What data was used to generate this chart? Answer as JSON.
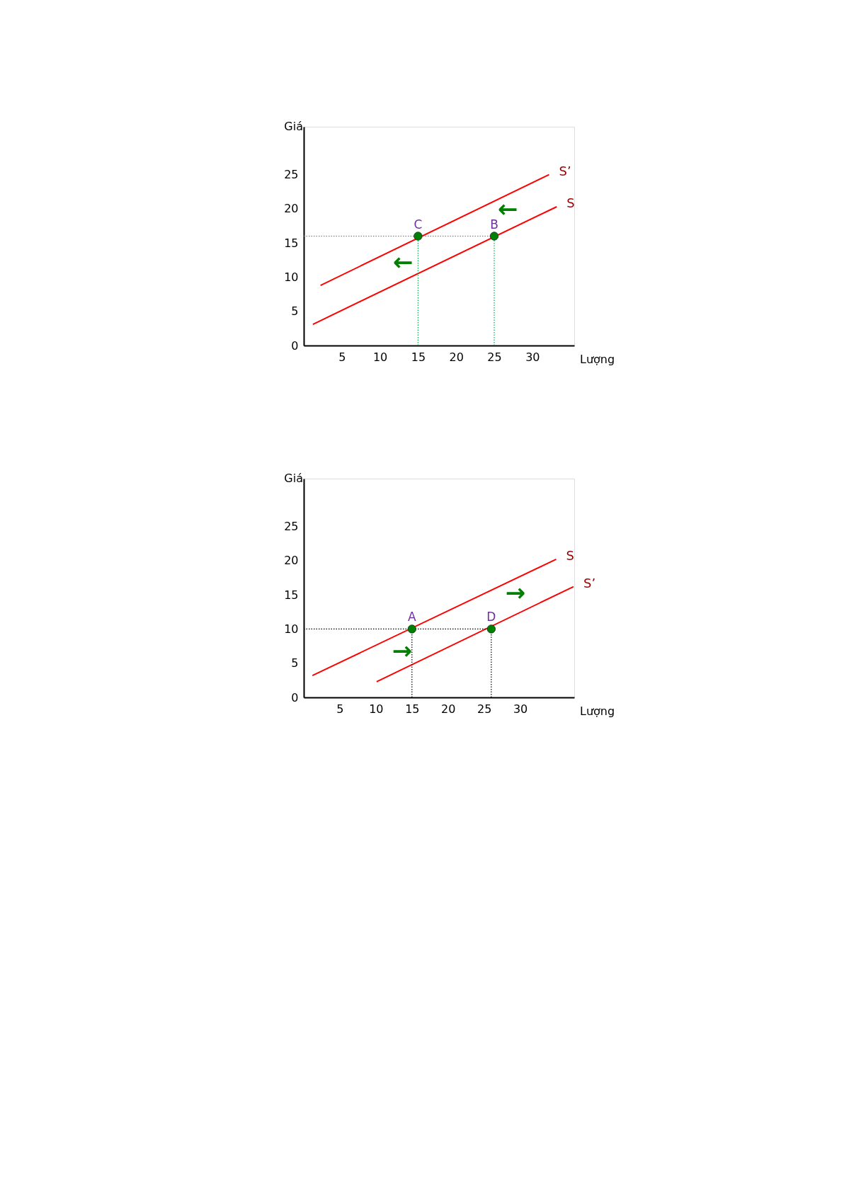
{
  "chart_data": [
    {
      "type": "line",
      "xlabel": "Lượng",
      "ylabel": "Giá",
      "xlim": [
        0,
        35.5
      ],
      "ylim": [
        0,
        32
      ],
      "xticks": [
        5,
        10,
        15,
        20,
        25,
        30
      ],
      "yticks": [
        0,
        5,
        10,
        15,
        20,
        25
      ],
      "series": [
        {
          "name": "S’",
          "color": "#ff0000",
          "x": [
            2.2,
            32.2
          ],
          "values": [
            8.8,
            25
          ]
        },
        {
          "name": "S",
          "color": "#ff0000",
          "x": [
            1.2,
            33.2
          ],
          "values": [
            3.1,
            20.3
          ]
        },
        {
          "color": "#00b050",
          "line_style": "dotted",
          "x": [
            0,
            25
          ],
          "values": [
            16,
            16
          ]
        },
        {
          "color": "#00b050",
          "line_style": "dotted",
          "x": [
            15,
            15
          ],
          "values": [
            0,
            16
          ]
        },
        {
          "color": "#00b050",
          "line_style": "dotted",
          "x": [
            25,
            25
          ],
          "values": [
            0,
            16
          ]
        },
        {
          "type": "scatter",
          "color": "#008000",
          "marker": "circle",
          "x": [
            15,
            25
          ],
          "values": [
            16,
            16
          ]
        }
      ],
      "annotations": [
        {
          "text": "C",
          "x": 15,
          "y": 16
        },
        {
          "text": "B",
          "x": 25,
          "y": 16
        },
        "←",
        "←"
      ]
    },
    {
      "type": "line",
      "xlabel": "Lượng",
      "ylabel": "Giá",
      "xlim": [
        0,
        37.5
      ],
      "ylim": [
        0,
        32
      ],
      "xticks": [
        5,
        10,
        15,
        20,
        25,
        30
      ],
      "yticks": [
        0,
        5,
        10,
        15,
        20,
        25
      ],
      "series": [
        {
          "name": "S",
          "color": "#ff0000",
          "x": [
            1.2,
            35.0
          ],
          "values": [
            3.2,
            20.2
          ]
        },
        {
          "name": "S’",
          "color": "#ff0000",
          "x": [
            10.1,
            37.4
          ],
          "values": [
            2.3,
            16.2
          ]
        },
        {
          "color": "#000000",
          "line_style": "dotted",
          "x": [
            0,
            26
          ],
          "values": [
            10,
            10
          ]
        },
        {
          "color": "#000000",
          "line_style": "dotted",
          "x": [
            15,
            15
          ],
          "values": [
            0,
            10
          ]
        },
        {
          "color": "#000000",
          "line_style": "dotted",
          "x": [
            26,
            26
          ],
          "values": [
            0,
            10
          ]
        },
        {
          "type": "scatter",
          "color": "#008000",
          "marker": "circle",
          "x": [
            15,
            26
          ],
          "values": [
            10,
            10
          ]
        }
      ],
      "annotations": [
        {
          "text": "A",
          "x": 15,
          "y": 10
        },
        {
          "text": "D",
          "x": 26,
          "y": 10
        },
        "→",
        "→"
      ]
    }
  ]
}
